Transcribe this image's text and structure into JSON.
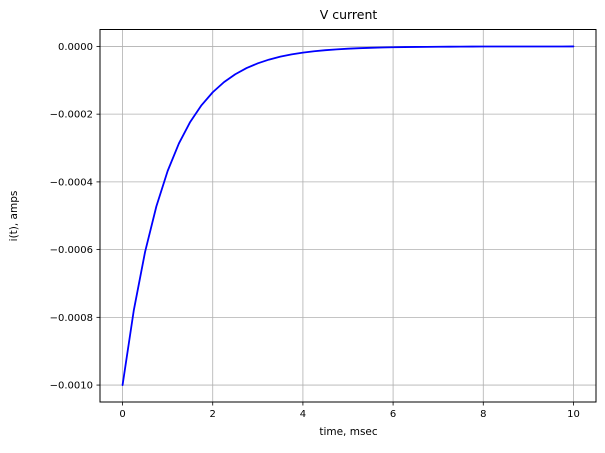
{
  "chart_data": {
    "type": "line",
    "title": "V current",
    "xlabel": "time, msec",
    "ylabel": "i(t), amps",
    "xlim": [
      -0.5,
      10.5
    ],
    "ylim": [
      -0.00105,
      5e-05
    ],
    "grid": true,
    "legend": false,
    "colors": {
      "line": "#0000ff",
      "grid": "#b0b0b0",
      "axis": "#000000",
      "background": "#ffffff"
    },
    "xticks": {
      "values": [
        0,
        2,
        4,
        6,
        8,
        10
      ],
      "labels": [
        "0",
        "2",
        "4",
        "6",
        "8",
        "10"
      ]
    },
    "yticks": {
      "values": [
        0.0,
        -0.0002,
        -0.0004,
        -0.0006,
        -0.0008,
        -0.001
      ],
      "labels": [
        "0.0000",
        "−0.0002",
        "−0.0004",
        "−0.0006",
        "−0.0008",
        "−0.0010"
      ]
    },
    "series": [
      {
        "name": "i(t)",
        "color": "#0000ff",
        "x": [
          0,
          0.25,
          0.5,
          0.75,
          1.0,
          1.25,
          1.5,
          1.75,
          2.0,
          2.25,
          2.5,
          2.75,
          3.0,
          3.25,
          3.5,
          3.75,
          4.0,
          4.25,
          4.5,
          4.75,
          5.0,
          5.25,
          5.5,
          5.75,
          6.0,
          6.25,
          6.5,
          6.75,
          7.0,
          7.25,
          7.5,
          7.75,
          8.0,
          8.25,
          8.5,
          8.75,
          9.0,
          9.25,
          9.5,
          9.75,
          10.0
        ],
        "y": [
          -0.001,
          -0.0007788,
          -0.0006065,
          -0.0004724,
          -0.0003679,
          -0.0002865,
          -0.0002231,
          -0.0001738,
          -0.0001353,
          -0.0001054,
          -8.21e-05,
          -6.39e-05,
          -4.98e-05,
          -3.88e-05,
          -3.02e-05,
          -2.35e-05,
          -1.83e-05,
          -1.43e-05,
          -1.11e-05,
          -8.7e-06,
          -6.7e-06,
          -5.2e-06,
          -4.1e-06,
          -3.2e-06,
          -2.5e-06,
          -1.9e-06,
          -1.5e-06,
          -1.2e-06,
          -9e-07,
          -7e-07,
          -6e-07,
          -4e-07,
          -3e-07,
          -3e-07,
          -2e-07,
          -2e-07,
          -1e-07,
          -1e-07,
          -1e-07,
          -1e-07,
          0.0
        ]
      }
    ]
  }
}
